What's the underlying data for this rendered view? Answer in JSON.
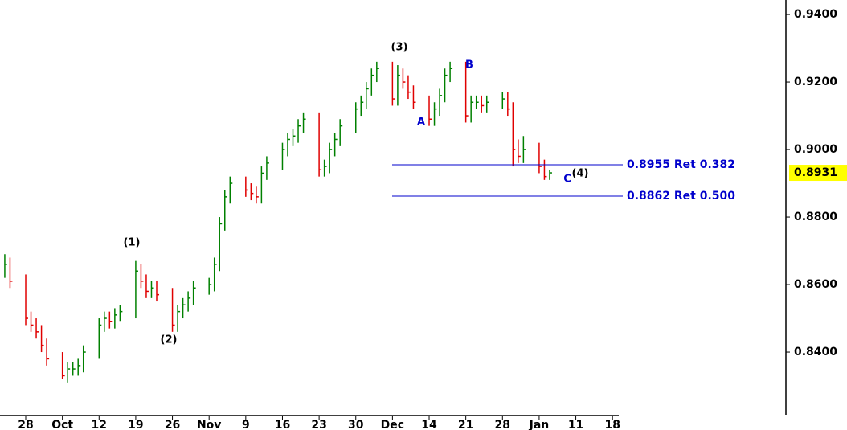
{
  "chart_data": {
    "type": "ohlc",
    "x": [
      -4,
      -3,
      0,
      1,
      2,
      3,
      4,
      7,
      8,
      9,
      10,
      11,
      14,
      15,
      16,
      17,
      18,
      21,
      22,
      23,
      24,
      25,
      28,
      29,
      30,
      31,
      32,
      35,
      36,
      37,
      38,
      39,
      42,
      43,
      44,
      45,
      46,
      49,
      50,
      51,
      52,
      53,
      56,
      57,
      58,
      59,
      60,
      63,
      64,
      65,
      66,
      67,
      70,
      71,
      72,
      73,
      74,
      77,
      78,
      79,
      80,
      81,
      84,
      85,
      86,
      87,
      88,
      91,
      92,
      93,
      94,
      95,
      98,
      99,
      100
    ],
    "high": [
      0.869,
      0.868,
      0.863,
      0.852,
      0.85,
      0.848,
      0.844,
      0.84,
      0.837,
      0.837,
      0.838,
      0.842,
      0.85,
      0.852,
      0.852,
      0.853,
      0.854,
      0.867,
      0.866,
      0.863,
      0.861,
      0.861,
      0.859,
      0.854,
      0.856,
      0.858,
      0.861,
      0.862,
      0.868,
      0.88,
      0.888,
      0.892,
      0.892,
      0.89,
      0.889,
      0.895,
      0.898,
      0.902,
      0.905,
      0.906,
      0.909,
      0.911,
      0.911,
      0.897,
      0.902,
      0.905,
      0.909,
      0.914,
      0.916,
      0.92,
      0.924,
      0.926,
      0.926,
      0.925,
      0.924,
      0.922,
      0.919,
      0.916,
      0.914,
      0.918,
      0.924,
      0.926,
      0.926,
      0.916,
      0.916,
      0.916,
      0.916,
      0.917,
      0.917,
      0.914,
      0.903,
      0.904,
      0.902,
      0.897,
      0.894
    ],
    "low": [
      0.862,
      0.859,
      0.848,
      0.846,
      0.844,
      0.84,
      0.836,
      0.832,
      0.831,
      0.833,
      0.833,
      0.834,
      0.838,
      0.846,
      0.847,
      0.847,
      0.849,
      0.85,
      0.859,
      0.856,
      0.856,
      0.855,
      0.846,
      0.846,
      0.85,
      0.852,
      0.854,
      0.857,
      0.858,
      0.864,
      0.876,
      0.884,
      0.886,
      0.885,
      0.884,
      0.884,
      0.891,
      0.894,
      0.898,
      0.901,
      0.902,
      0.905,
      0.892,
      0.892,
      0.893,
      0.898,
      0.901,
      0.905,
      0.91,
      0.912,
      0.916,
      0.92,
      0.913,
      0.913,
      0.918,
      0.915,
      0.912,
      0.907,
      0.907,
      0.91,
      0.914,
      0.92,
      0.908,
      0.908,
      0.912,
      0.911,
      0.911,
      0.912,
      0.91,
      0.895,
      0.896,
      0.896,
      0.893,
      0.891,
      0.891
    ],
    "close": [
      0.866,
      0.861,
      0.85,
      0.848,
      0.846,
      0.842,
      0.838,
      0.833,
      0.835,
      0.835,
      0.836,
      0.84,
      0.848,
      0.85,
      0.849,
      0.851,
      0.852,
      0.864,
      0.861,
      0.858,
      0.859,
      0.857,
      0.848,
      0.852,
      0.854,
      0.856,
      0.859,
      0.86,
      0.866,
      0.878,
      0.886,
      0.89,
      0.888,
      0.887,
      0.886,
      0.893,
      0.896,
      0.9,
      0.903,
      0.904,
      0.907,
      0.909,
      0.894,
      0.895,
      0.9,
      0.903,
      0.907,
      0.912,
      0.914,
      0.918,
      0.922,
      0.924,
      0.915,
      0.922,
      0.92,
      0.917,
      0.914,
      0.909,
      0.912,
      0.916,
      0.922,
      0.924,
      0.91,
      0.914,
      0.914,
      0.913,
      0.914,
      0.915,
      0.912,
      0.9,
      0.898,
      0.9,
      0.895,
      0.892,
      0.8931
    ],
    "up_color": "#008000",
    "down_color": "#e00000",
    "xlim": [
      -4.91,
      145.1
    ],
    "xticks": [
      {
        "value": 0,
        "label": "28"
      },
      {
        "value": 7,
        "label": "Oct"
      },
      {
        "value": 14,
        "label": "12"
      },
      {
        "value": 21,
        "label": "19"
      },
      {
        "value": 28,
        "label": "26"
      },
      {
        "value": 35,
        "label": "Nov"
      },
      {
        "value": 42,
        "label": "9"
      },
      {
        "value": 49,
        "label": "16"
      },
      {
        "value": 56,
        "label": "23"
      },
      {
        "value": 63,
        "label": "30"
      },
      {
        "value": 70,
        "label": "Dec"
      },
      {
        "value": 77,
        "label": "14"
      },
      {
        "value": 84,
        "label": "21"
      },
      {
        "value": 91,
        "label": "28"
      },
      {
        "value": 98,
        "label": "Jan"
      },
      {
        "value": 105,
        "label": "11"
      },
      {
        "value": 112,
        "label": "18"
      }
    ],
    "ylim": [
      0.8212,
      0.9443
    ],
    "yticks": [
      {
        "value": 0.84,
        "label": "0.8400"
      },
      {
        "value": 0.86,
        "label": "0.8600"
      },
      {
        "value": 0.88,
        "label": "0.8800"
      },
      {
        "value": 0.9,
        "label": "0.9000"
      },
      {
        "value": 0.92,
        "label": "0.9200"
      },
      {
        "value": 0.94,
        "label": "0.9400"
      }
    ],
    "last_price": 0.8931,
    "levels": [
      {
        "value": 0.8955,
        "label": "0.8955 Ret 0.382"
      },
      {
        "value": 0.8862,
        "label": "0.8862 Ret 0.500"
      }
    ],
    "level_color": "#0000cc",
    "annotations": [
      "(1)",
      "(2)",
      "(3)",
      "(4)",
      "A",
      "B",
      "C"
    ]
  }
}
